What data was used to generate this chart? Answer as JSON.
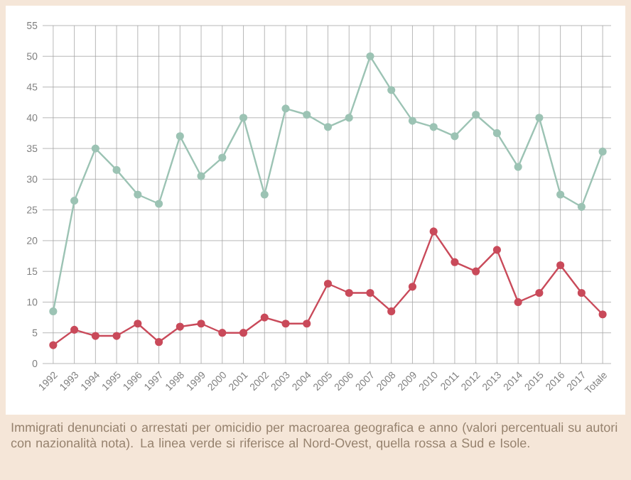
{
  "chart_data": {
    "type": "line",
    "categories": [
      "1992",
      "1993",
      "1994",
      "1995",
      "1996",
      "1997",
      "1998",
      "1999",
      "2000",
      "2001",
      "2002",
      "2003",
      "2004",
      "2005",
      "2006",
      "2007",
      "2008",
      "2009",
      "2010",
      "2011",
      "2012",
      "2013",
      "2014",
      "2015",
      "2016",
      "2017",
      "Totale"
    ],
    "series": [
      {
        "color": "#9cc3b4",
        "values": [
          8.5,
          26.5,
          35,
          31.5,
          27.5,
          26,
          37,
          30.5,
          33.5,
          40,
          27.5,
          41.5,
          40.5,
          38.5,
          40,
          50,
          44.5,
          39.5,
          38.5,
          37,
          40.5,
          37.5,
          32,
          40,
          27.5,
          25.5,
          34.5
        ]
      },
      {
        "color": "#c94a5a",
        "values": [
          3,
          5.5,
          4.5,
          4.5,
          6.5,
          3.5,
          6,
          6.5,
          5,
          5,
          7.5,
          6.5,
          6.5,
          13,
          11.5,
          11.5,
          8.5,
          12.5,
          21.5,
          16.5,
          15,
          18.5,
          10,
          11.5,
          16,
          11.5,
          8
        ]
      }
    ],
    "ylim": [
      0,
      55
    ],
    "yticks": [
      0,
      5,
      10,
      15,
      20,
      25,
      30,
      35,
      40,
      45,
      50,
      55
    ],
    "grid": true,
    "marker": "circle",
    "line_style": "solid",
    "annotations": [
      "Immigrati denunciati o arrestati per omicidio per macroarea geografica e anno (valori percentuali su autori con nazionalità nota). La linea verde si riferisce al Nord-Ovest, quella rossa a Sud e Isole."
    ]
  }
}
